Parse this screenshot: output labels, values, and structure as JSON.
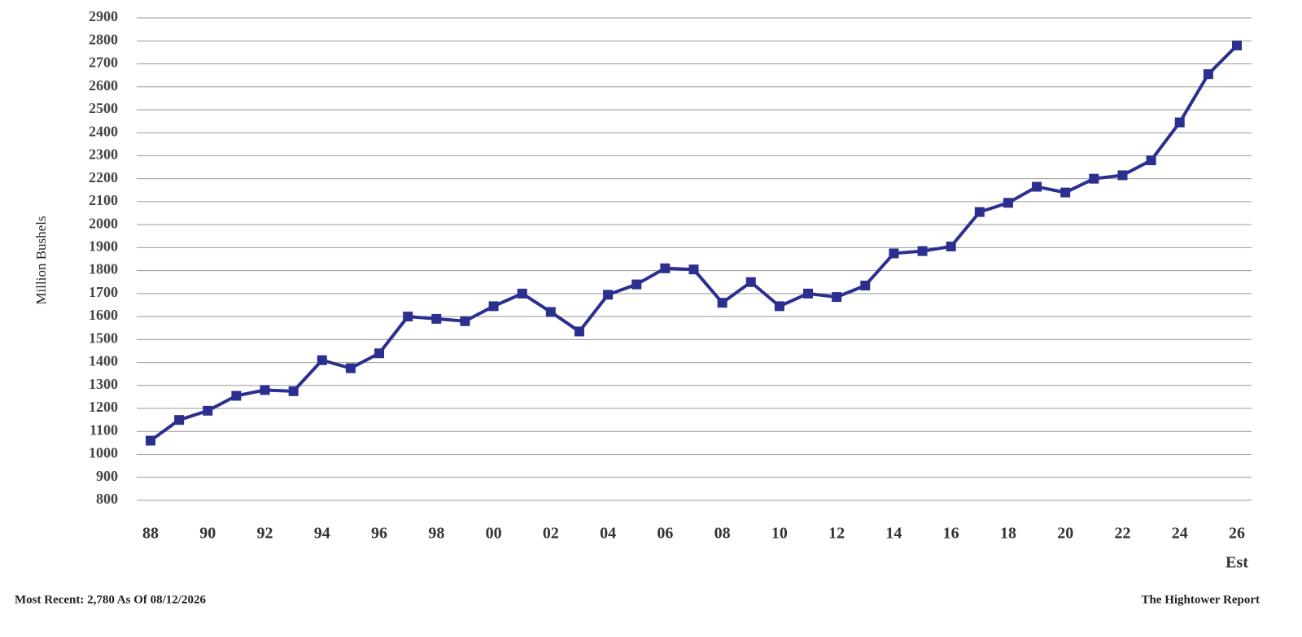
{
  "chart_data": {
    "type": "line",
    "y_label": "Million Bushels",
    "annotation": "Est",
    "footnote": "Most Recent: 2,780 As Of 08/12/2026",
    "source": "The Hightower Report",
    "categories": [
      "88",
      null,
      "90",
      null,
      "92",
      null,
      "94",
      null,
      "96",
      null,
      "98",
      null,
      "00",
      null,
      "02",
      null,
      "04",
      null,
      "06",
      null,
      "08",
      null,
      "10",
      null,
      "12",
      null,
      "14",
      null,
      "16",
      null,
      "18",
      null,
      "20",
      null,
      "22",
      null,
      "24",
      null,
      "26"
    ],
    "series": [
      {
        "color": "#2b2f8f",
        "values": [
          1060,
          1150,
          1190,
          1255,
          1280,
          1275,
          1410,
          1375,
          1440,
          1600,
          1590,
          1580,
          1645,
          1700,
          1620,
          1535,
          1695,
          1740,
          1810,
          1805,
          1660,
          1750,
          1645,
          1700,
          1685,
          1735,
          1875,
          1885,
          1905,
          2055,
          2095,
          2165,
          2140,
          2200,
          2215,
          2280,
          2445,
          2655,
          2780
        ]
      }
    ],
    "ylim": [
      800,
      2900
    ],
    "yticks": [
      800,
      900,
      1000,
      1100,
      1200,
      1300,
      1400,
      1500,
      1600,
      1700,
      1800,
      1900,
      2000,
      2100,
      2200,
      2300,
      2400,
      2500,
      2600,
      2700,
      2800,
      2900
    ],
    "grid": true
  }
}
